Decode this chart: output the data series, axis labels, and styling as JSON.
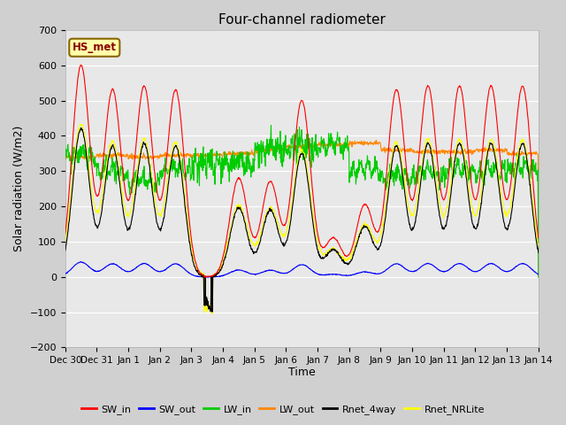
{
  "title": "Four-channel radiometer",
  "xlabel": "Time",
  "ylabel": "Solar radiation (W/m2)",
  "station_label": "HS_met",
  "ylim": [
    -200,
    700
  ],
  "yticks": [
    -200,
    -100,
    0,
    100,
    200,
    300,
    400,
    500,
    600,
    700
  ],
  "colors": {
    "SW_in": "#ff0000",
    "SW_out": "#0000ff",
    "LW_in": "#00cc00",
    "LW_out": "#ff8800",
    "Rnet_4way": "#000000",
    "Rnet_NRLite": "#ffff00"
  },
  "fig_bg": "#d0d0d0",
  "axes_bg": "#e8e8e8",
  "n_days": 15,
  "xtick_labels": [
    "Dec 30",
    "Dec 31",
    "Jan 1",
    "Jan 2",
    "Jan 3",
    "Jan 4",
    "Jan 5",
    "Jan 6",
    "Jan 7",
    "Jan 8",
    "Jan 9",
    "Jan 10",
    "Jan 11",
    "Jan 12",
    "Jan 13",
    "Jan 14"
  ],
  "xtick_positions": [
    0,
    1,
    2,
    3,
    4,
    5,
    6,
    7,
    8,
    9,
    10,
    11,
    12,
    13,
    14,
    15
  ],
  "sw_in_peaks": [
    600,
    530,
    540,
    530,
    0,
    280,
    270,
    500,
    110,
    205,
    530,
    540,
    540,
    540,
    540
  ],
  "lw_out_vals": [
    340,
    345,
    340,
    345,
    345,
    350,
    360,
    370,
    375,
    380,
    360,
    355,
    355,
    360,
    350
  ],
  "lw_in_days": [
    330,
    285,
    255,
    290,
    305,
    310,
    345,
    355,
    360,
    290,
    270,
    280,
    290,
    285,
    295
  ],
  "rnet_night": -80,
  "line_width": 0.8
}
